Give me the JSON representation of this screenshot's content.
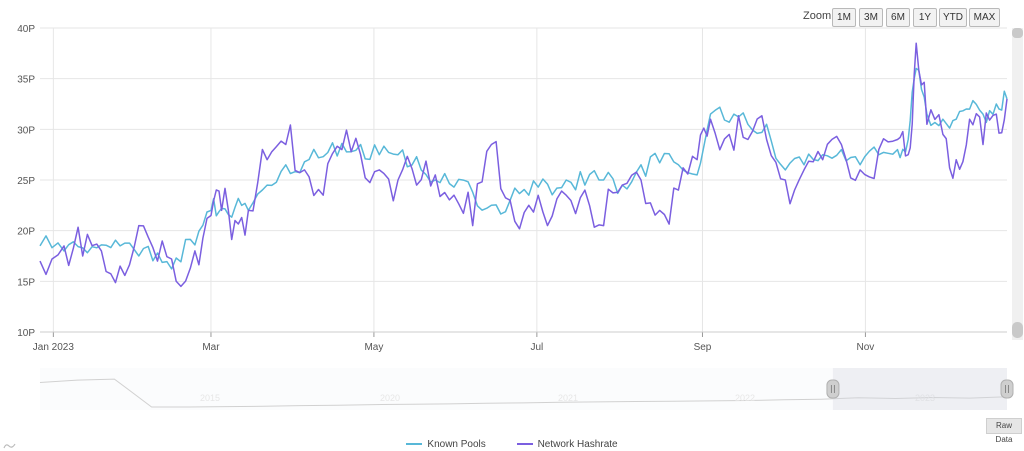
{
  "toolbar": {
    "zoom_label": "Zoom",
    "zoom_buttons": [
      "1M",
      "3M",
      "6M",
      "1Y",
      "YTD",
      "MAX"
    ],
    "raw_data_label": "Raw Data"
  },
  "colors": {
    "known_pools": "#58b8d8",
    "network_hashrate": "#7b5fe0",
    "grid": "#e6e6e6",
    "navigator_line": "#999999"
  },
  "chart_data": {
    "type": "line",
    "y_unit_suffix": "P",
    "yticks": [
      10,
      15,
      20,
      25,
      30,
      35,
      40
    ],
    "ylim": [
      10,
      40
    ],
    "xticks": [
      {
        "label": "Jan 2023",
        "day": 0
      },
      {
        "label": "Mar",
        "day": 59
      },
      {
        "label": "May",
        "day": 120
      },
      {
        "label": "Jul",
        "day": 181
      },
      {
        "label": "Sep",
        "day": 243
      },
      {
        "label": "Nov",
        "day": 304
      }
    ],
    "x": [
      "2022-12-27",
      "2023-01-05",
      "2023-01-12",
      "2023-01-19",
      "2023-01-26",
      "2023-02-02",
      "2023-02-09",
      "2023-02-16",
      "2023-02-23",
      "2023-03-01",
      "2023-03-05",
      "2023-03-10",
      "2023-03-15",
      "2023-03-22",
      "2023-03-29",
      "2023-04-05",
      "2023-04-12",
      "2023-04-19",
      "2023-04-26",
      "2023-05-03",
      "2023-05-10",
      "2023-05-17",
      "2023-05-24",
      "2023-05-31",
      "2023-06-07",
      "2023-06-14",
      "2023-06-21",
      "2023-06-28",
      "2023-07-05",
      "2023-07-12",
      "2023-07-19",
      "2023-07-26",
      "2023-08-02",
      "2023-08-09",
      "2023-08-16",
      "2023-08-23",
      "2023-08-30",
      "2023-09-04",
      "2023-09-11",
      "2023-09-18",
      "2023-09-25",
      "2023-10-02",
      "2023-10-09",
      "2023-10-16",
      "2023-10-23",
      "2023-10-30",
      "2023-11-06",
      "2023-11-13",
      "2023-11-17",
      "2023-11-20",
      "2023-11-24",
      "2023-11-30",
      "2023-12-05",
      "2023-12-10",
      "2023-12-15",
      "2023-12-20",
      "2023-12-24"
    ],
    "series": [
      {
        "name": "Known Pools",
        "values": [
          18.5,
          18.0,
          18.3,
          18.6,
          18.5,
          17.5,
          17.8,
          17.3,
          18.6,
          22.0,
          22.2,
          22.3,
          22.0,
          24.5,
          26.5,
          26.8,
          27.3,
          28.6,
          28.5,
          27.5,
          27.5,
          27.3,
          25.0,
          24.3,
          23.8,
          22.5,
          23.0,
          23.5,
          24.6,
          25.0,
          24.5,
          25.0,
          24.5,
          26.5,
          26.7,
          26.5,
          25.5,
          31.5,
          30.7,
          30.5,
          30.5,
          26.0,
          26.5,
          27.5,
          28.0,
          26.5,
          27.5,
          28.0,
          29.0,
          36.0,
          31.5,
          31.0,
          31.0,
          32.0,
          31.5,
          32.5,
          33.0
        ]
      },
      {
        "name": "Network Hashrate",
        "values": [
          17.0,
          18.5,
          17.5,
          18.0,
          16.5,
          20.5,
          17.0,
          15.0,
          18.0,
          21.5,
          22.0,
          21.0,
          22.0,
          27.0,
          28.5,
          26.0,
          23.5,
          28.0,
          27.5,
          26.0,
          25.0,
          24.5,
          25.5,
          23.5,
          20.5,
          28.5,
          23.0,
          22.5,
          20.5,
          23.5,
          24.0,
          20.5,
          24.5,
          25.0,
          22.0,
          24.0,
          27.0,
          31.0,
          29.5,
          29.0,
          29.0,
          25.0,
          26.0,
          27.0,
          28.5,
          26.0,
          28.0,
          29.0,
          27.5,
          38.5,
          30.5,
          29.5,
          27.0,
          31.0,
          28.5,
          31.5,
          33.0
        ]
      }
    ],
    "navigator": {
      "labels": [
        "2015",
        "2020",
        "2021",
        "2022",
        "2023"
      ],
      "values": [
        0.75,
        0.82,
        0.85,
        0.03,
        0.03,
        0.04,
        0.05,
        0.07,
        0.08,
        0.1,
        0.11,
        0.12,
        0.14,
        0.15,
        0.17,
        0.18,
        0.19,
        0.2,
        0.21,
        0.22,
        0.24,
        0.26,
        0.3,
        0.28,
        0.31,
        0.29,
        0.33
      ],
      "selected_from_fraction": 0.82
    }
  }
}
